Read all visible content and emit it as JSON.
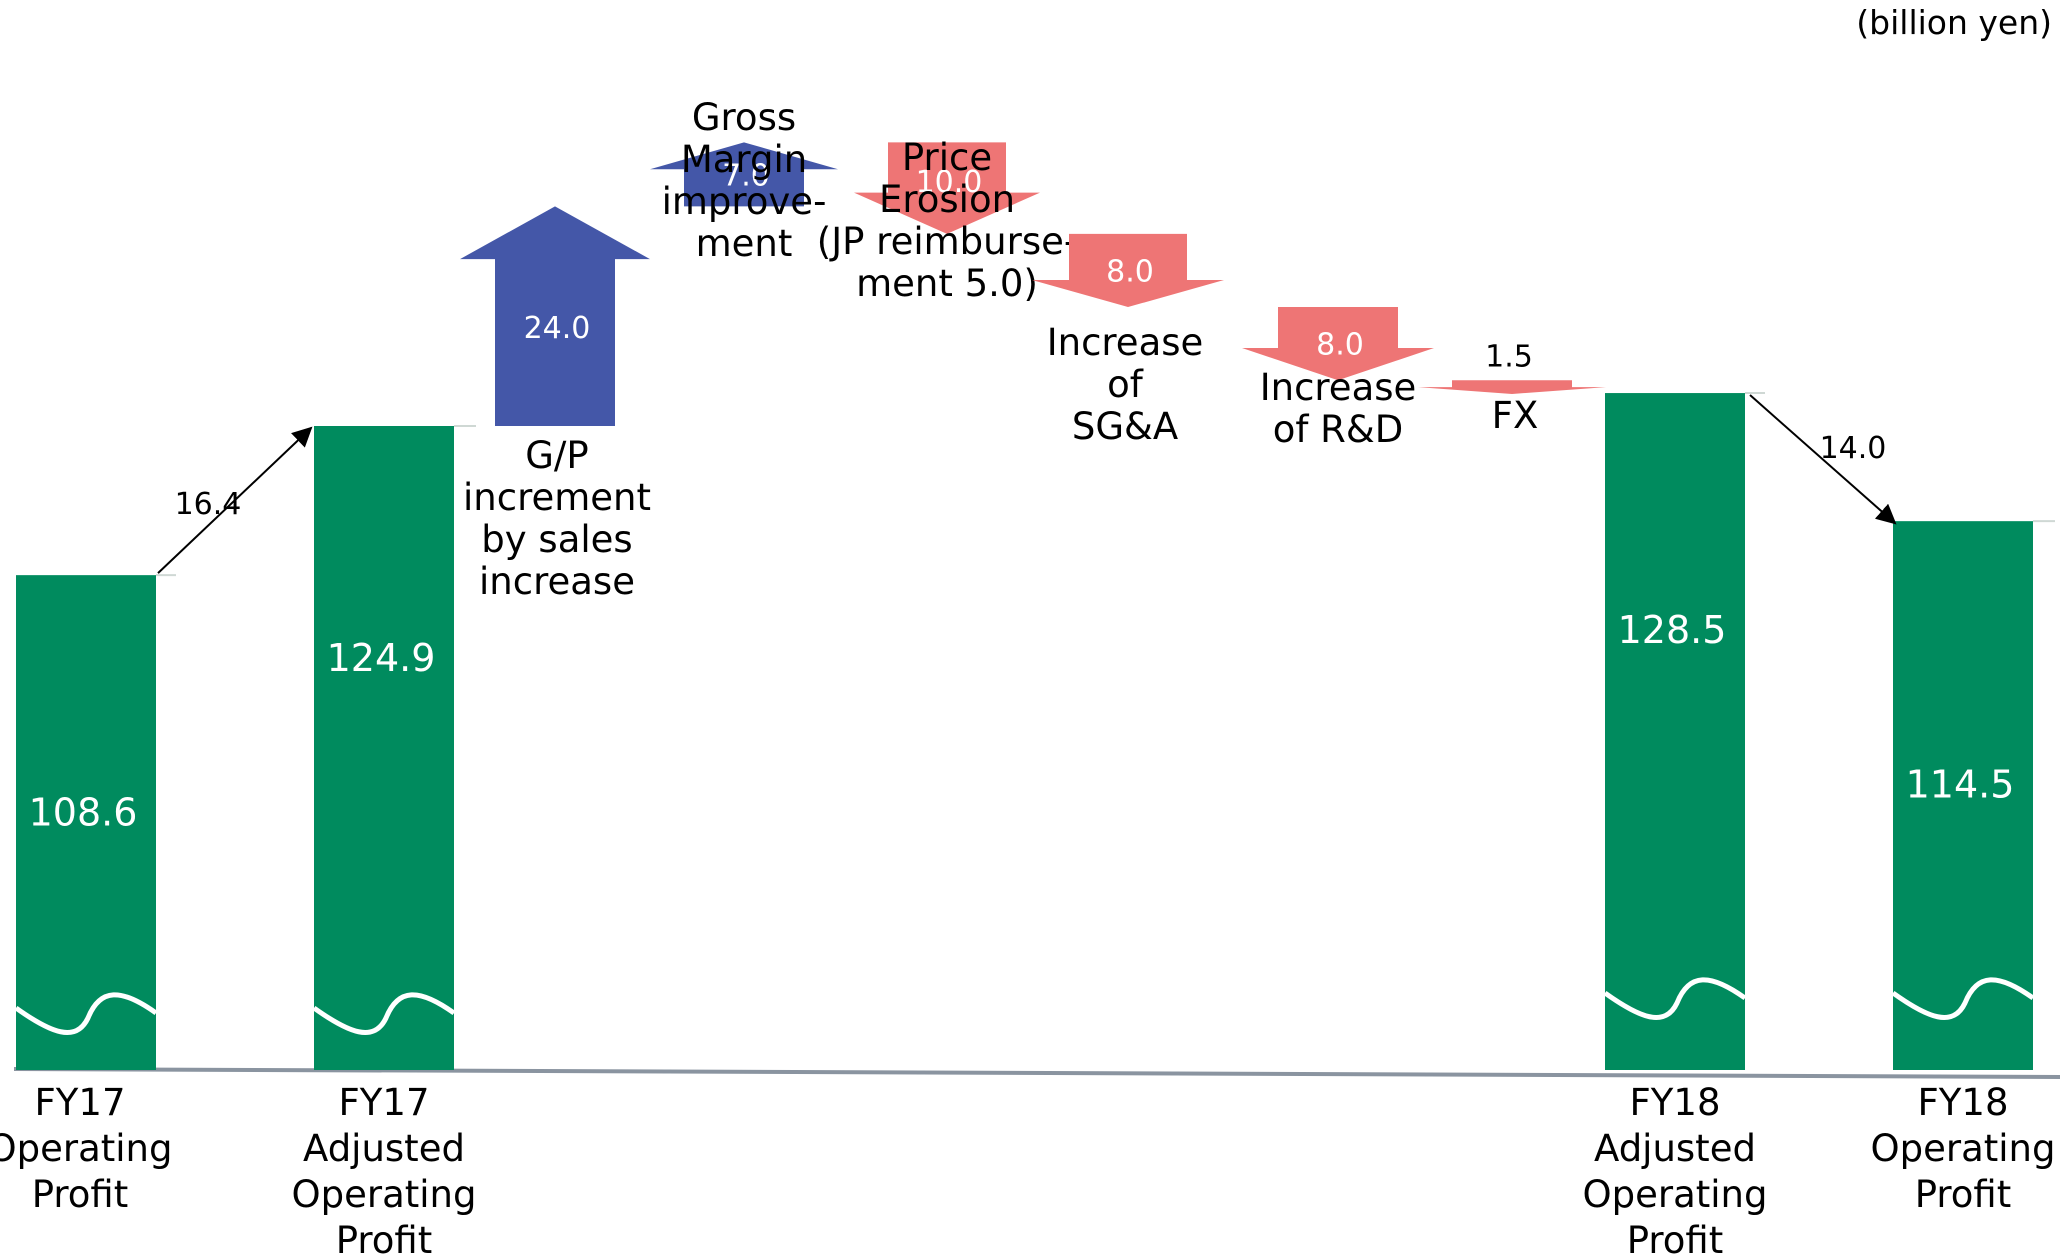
{
  "unit_label": "(billion yen)",
  "colors": {
    "bar": "#008b5e",
    "increase": "#4457a8",
    "decrease": "#ee7575",
    "baseline": "#8a94a0",
    "break": "#ffffff"
  },
  "chart_data": {
    "type": "waterfall",
    "unit": "(billion yen)",
    "bars": [
      {
        "label": [
          "FY17",
          "Operating",
          "Profit"
        ],
        "value": 108.6
      },
      {
        "label": [
          "FY17",
          "Adjusted",
          "Operating",
          "Profit"
        ],
        "value": 124.9
      },
      {
        "label": [
          "FY18",
          "Adjusted",
          "Operating",
          "Profit"
        ],
        "value": 128.5
      },
      {
        "label": [
          "FY18",
          "Operating",
          "Profit"
        ],
        "value": 114.5
      }
    ],
    "steps": [
      {
        "label": [
          "G/P",
          "increment",
          "by sales",
          "increase"
        ],
        "value": 24.0,
        "direction": "up"
      },
      {
        "label": [
          "Gross",
          "Margin",
          "improve-",
          "ment"
        ],
        "value": 7.0,
        "direction": "up"
      },
      {
        "label": [
          "Price",
          "Erosion",
          "(JP reimburse-",
          "ment 5.0)"
        ],
        "value": 10.0,
        "direction": "down"
      },
      {
        "label": [
          "Increase",
          "of",
          "SG&A"
        ],
        "value": 8.0,
        "direction": "down"
      },
      {
        "label": [
          "Increase",
          "of R&D"
        ],
        "value": 8.0,
        "direction": "down"
      },
      {
        "label": [
          "FX"
        ],
        "value": 1.5,
        "direction": "down"
      }
    ],
    "adjustments": [
      {
        "from": "FY17 Operating Profit",
        "to": "FY17 Adjusted Operating Profit",
        "value": 16.4
      },
      {
        "from": "FY18 Adjusted Operating Profit",
        "to": "FY18 Operating Profit",
        "value": 14.0
      }
    ],
    "axis_break": true
  }
}
